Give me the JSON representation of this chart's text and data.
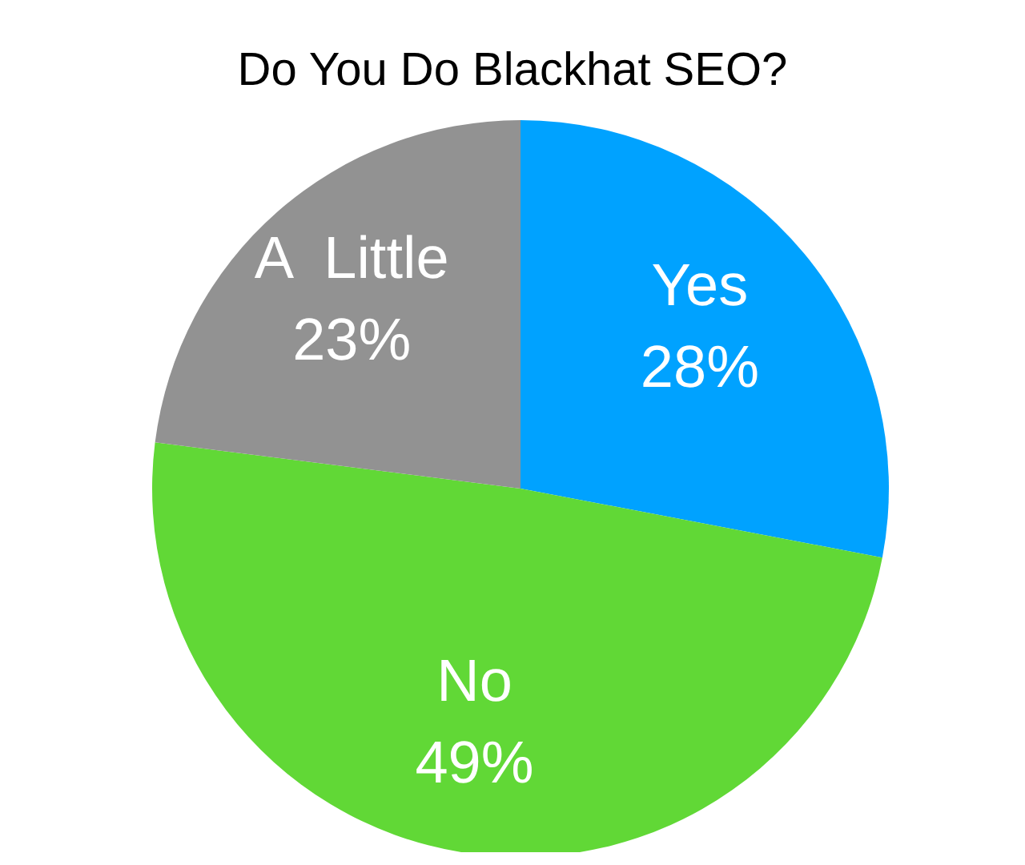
{
  "chart_data": {
    "type": "pie",
    "title": "Do You Do Blackhat SEO?",
    "categories": [
      "Yes",
      "No",
      "A  Little"
    ],
    "values": [
      28,
      49,
      23
    ],
    "value_labels": [
      "28%",
      "49%",
      "23%"
    ],
    "colors": [
      "#00a2ff",
      "#61d836",
      "#929292"
    ],
    "legend": false
  }
}
